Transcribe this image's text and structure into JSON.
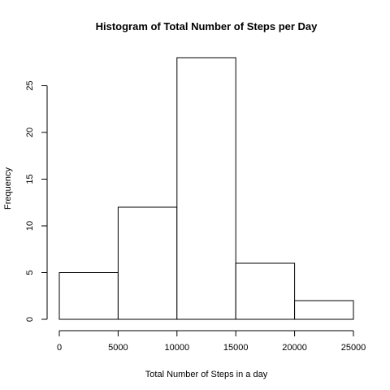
{
  "chart_data": {
    "type": "bar",
    "title": "Histogram of Total Number of Steps per Day",
    "xlabel": "Total Number of Steps in a day",
    "ylabel": "Frequency",
    "bins": [
      {
        "start": 0,
        "end": 5000,
        "count": 5
      },
      {
        "start": 5000,
        "end": 10000,
        "count": 12
      },
      {
        "start": 10000,
        "end": 15000,
        "count": 28
      },
      {
        "start": 15000,
        "end": 20000,
        "count": 6
      },
      {
        "start": 20000,
        "end": 25000,
        "count": 2
      }
    ],
    "xlim": [
      0,
      25000
    ],
    "ylim": [
      0,
      28
    ],
    "x_ticks": [
      0,
      5000,
      10000,
      15000,
      20000,
      25000
    ],
    "y_ticks": [
      0,
      5,
      10,
      15,
      20,
      25
    ],
    "grid": false,
    "colors": {
      "bar_fill": "#ffffff",
      "bar_stroke": "#000000"
    }
  }
}
